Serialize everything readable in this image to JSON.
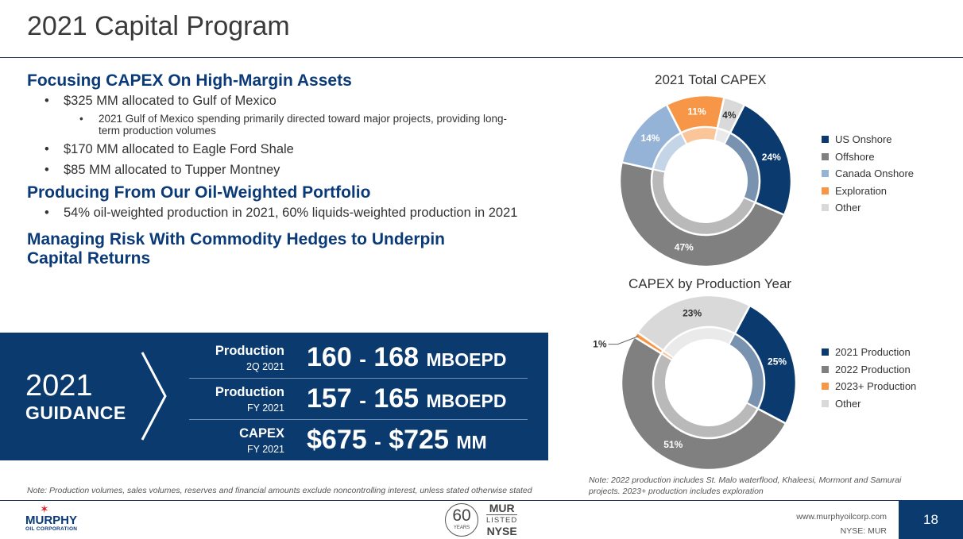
{
  "slide": {
    "title": "2021 Capital Program",
    "page_number": "18"
  },
  "content": {
    "section1": {
      "heading": "Focusing CAPEX On High-Margin Assets",
      "b1": "$325 MM allocated to Gulf of Mexico",
      "b1_sub": "2021 Gulf of Mexico spending primarily directed toward major projects, providing long-term production volumes",
      "b2": "$170 MM allocated to Eagle Ford Shale",
      "b3": "$85 MM allocated to Tupper Montney"
    },
    "section2": {
      "heading": "Producing From Our Oil-Weighted Portfolio",
      "b1": "54% oil-weighted production in 2021, 60% liquids-weighted production in 2021"
    },
    "section3": {
      "heading": "Managing Risk With Commodity Hedges to Underpin Capital Returns"
    }
  },
  "guidance": {
    "year": "2021",
    "label": "GUIDANCE",
    "rows": [
      {
        "label": "Production",
        "period": "2Q 2021",
        "low": "160",
        "dash": "-",
        "high": "168",
        "unit": "MBOEPD"
      },
      {
        "label": "Production",
        "period": "FY 2021",
        "low": "157",
        "dash": "-",
        "high": "165",
        "unit": "MBOEPD"
      },
      {
        "label": "CAPEX",
        "period": "FY 2021",
        "low": "$675",
        "dash": "-",
        "high": "$725",
        "unit": "MM"
      }
    ]
  },
  "notes": {
    "left": "Note: Production volumes, sales volumes, reserves and financial amounts exclude noncontrolling interest, unless stated otherwise stated",
    "right": "Note: 2022 production includes St. Malo waterflood, Khaleesi, Mormont and Samurai projects. 2023+ production includes exploration"
  },
  "footer": {
    "logo_name": "MURPHY",
    "logo_sub": "OIL CORPORATION",
    "anniv_number": "60",
    "anniv_word": "YEARS",
    "ticker": "MUR",
    "listed": "LISTED",
    "exchange": "NYSE",
    "website": "www.murphyoilcorp.com",
    "nyse": "NYSE: MUR"
  },
  "colors": {
    "navy": "#0b3a6e",
    "heading_blue": "#0b3a78",
    "us_onshore": "#0b3a6e",
    "offshore": "#808080",
    "canada_onshore": "#95b3d7",
    "exploration": "#f79646",
    "other": "#d9d9d9"
  },
  "chart_data": [
    {
      "type": "pie",
      "title": "2021 Total CAPEX",
      "labels": [
        "US Onshore",
        "Offshore",
        "Canada Onshore",
        "Exploration",
        "Other"
      ],
      "values": [
        24,
        47,
        14,
        11,
        4
      ],
      "value_labels": [
        "24%",
        "47%",
        "14%",
        "11%",
        "4%"
      ],
      "colors": [
        "#0b3a6e",
        "#808080",
        "#95b3d7",
        "#f79646",
        "#d9d9d9"
      ],
      "legend": "right"
    },
    {
      "type": "pie",
      "title": "CAPEX by Production Year",
      "labels": [
        "2021 Production",
        "2022 Production",
        "2023+ Production",
        "Other"
      ],
      "values": [
        25,
        51,
        1,
        23
      ],
      "value_labels": [
        "25%",
        "51%",
        "1%",
        "23%"
      ],
      "colors": [
        "#0b3a6e",
        "#808080",
        "#f79646",
        "#d9d9d9"
      ],
      "legend": "right"
    }
  ]
}
